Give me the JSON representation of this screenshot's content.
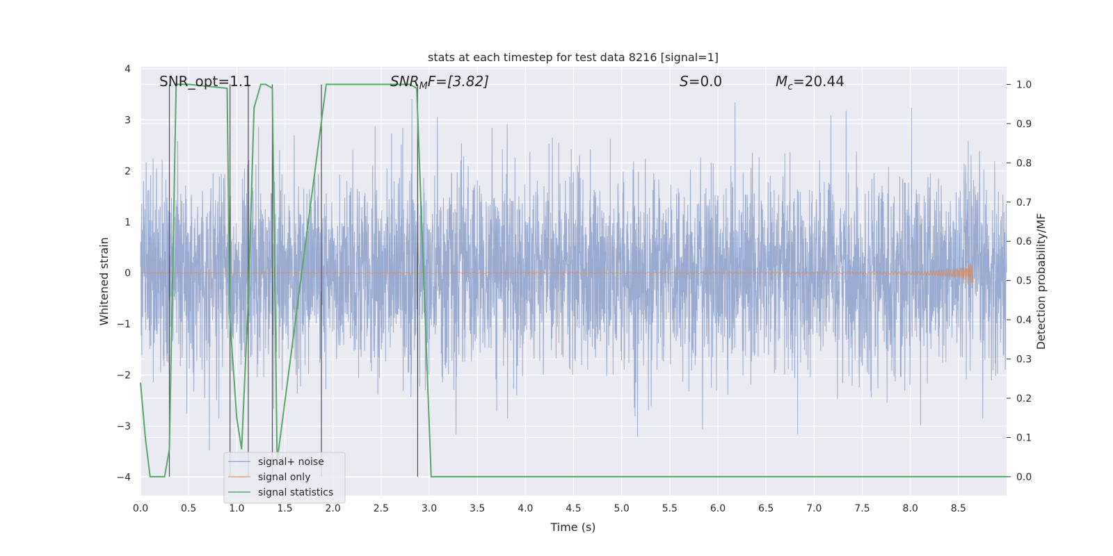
{
  "chart_data": {
    "type": "line",
    "title": "stats at each timestep for test data 8216 [signal=1]",
    "xlabel": "Time (s)",
    "ylabel_left": "Whitened strain",
    "ylabel_right": "Detection probability/MF",
    "xlim": [
      0.0,
      9.0
    ],
    "ylim_left": [
      -4.36,
      4.04
    ],
    "ylim_right": [
      -0.048,
      1.045
    ],
    "x_ticks": [
      "0.0",
      "0.5",
      "1.0",
      "1.5",
      "2.0",
      "2.5",
      "3.0",
      "3.5",
      "4.0",
      "4.5",
      "5.0",
      "5.5",
      "6.0",
      "6.5",
      "7.0",
      "7.5",
      "8.0",
      "8.5"
    ],
    "y_ticks_left": [
      "−4",
      "−3",
      "−2",
      "−1",
      "0",
      "1",
      "2",
      "3",
      "4"
    ],
    "y_ticks_right": [
      "0.0",
      "0.1",
      "0.2",
      "0.3",
      "0.4",
      "0.5",
      "0.6",
      "0.7",
      "0.8",
      "0.9",
      "1.0"
    ],
    "grid": true,
    "annotations": {
      "snr_opt": "SNR_opt=1.1",
      "snr_mf_prefix": "SNR",
      "snr_mf_sub": "M",
      "snr_mf_suffix": "F=[3.82]",
      "s_symbol": "S",
      "s_value": "=0.0",
      "mc_symbol": "M",
      "mc_sub": "c",
      "mc_value": "=20.44"
    },
    "colors": {
      "background": "#eaeaf2",
      "grid": "#ffffff",
      "noise": "#95a8ce",
      "signal": "#dd8452",
      "stat": "#55a868",
      "vline": "#333333"
    },
    "series": [
      {
        "name": "signal+ noise",
        "description": "whitened strain, roughly Gaussian noise sigma ~0.95, spikes to about ±3.3",
        "peaks_approx": [
          3.2,
          3.1,
          -3.9,
          -3.6,
          3.0,
          -3.3,
          3.1,
          -3.1,
          3.2,
          -3.3
        ]
      },
      {
        "name": "signal only",
        "description": "chirp near zero, grows to about ±0.2 near t=8.6 s",
        "end_time": 8.65,
        "max_amplitude": 0.2
      },
      {
        "name": "signal statistics",
        "axis": "right",
        "x": [
          0.0,
          0.05,
          0.1,
          0.25,
          0.3,
          0.37,
          0.5,
          0.9,
          0.93,
          1.0,
          1.05,
          1.12,
          1.18,
          1.25,
          1.3,
          1.37,
          1.42,
          1.93,
          2.8,
          2.87,
          3.02,
          3.08,
          9.0
        ],
        "y": [
          0.24,
          0.1,
          0.0,
          0.0,
          0.07,
          1.0,
          1.0,
          0.99,
          0.4,
          0.15,
          0.07,
          0.45,
          0.94,
          1.0,
          1.0,
          0.99,
          0.04,
          1.0,
          1.0,
          0.99,
          0.0,
          0.0,
          0.0
        ]
      }
    ],
    "vertical_markers_x": [
      0.3,
      0.93,
      1.12,
      1.37,
      1.88,
      2.88
    ],
    "legend": {
      "placement": "lower-left",
      "entries": [
        "signal+ noise",
        "signal only",
        "signal statistics"
      ]
    }
  }
}
